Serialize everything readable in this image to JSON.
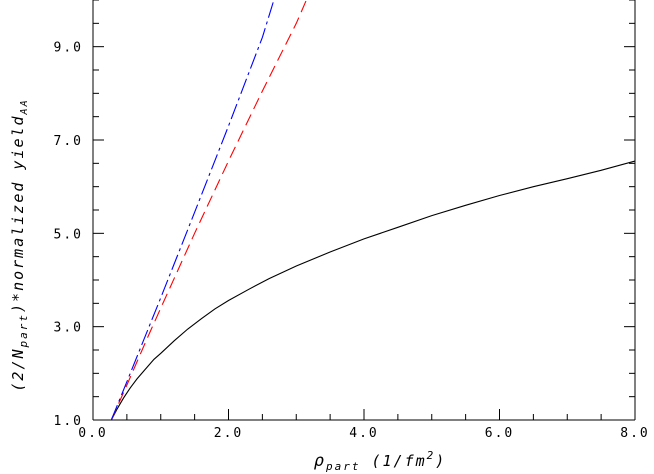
{
  "chart_data": {
    "type": "line",
    "xlabel": {
      "base": "ρ",
      "sub": "part",
      "rest": " (1/fm",
      "sup": "2",
      "end": ")"
    },
    "ylabel": {
      "pre": "(2/N",
      "sub1": "part",
      "mid": ")*normalized yield",
      "sub2": "AA"
    },
    "xlim": [
      0.0,
      8.0
    ],
    "ylim": [
      1.0,
      10.0
    ],
    "x_ticks": [
      "0.0",
      "2.0",
      "4.0",
      "6.0",
      "8.0"
    ],
    "x_tick_values": [
      0,
      2,
      4,
      6,
      8
    ],
    "y_ticks": [
      "1.0",
      "3.0",
      "5.0",
      "7.0",
      "9.0"
    ],
    "y_tick_values": [
      1,
      3,
      5,
      7,
      9
    ],
    "x_minor_step": 0.5,
    "y_minor_step": 0.5,
    "grid": false,
    "series": [
      {
        "style": "solid",
        "color": "#000000",
        "x": [
          0.27,
          0.35,
          0.45,
          0.55,
          0.65,
          0.75,
          0.9,
          1.0,
          1.2,
          1.4,
          1.6,
          1.8,
          2.0,
          2.3,
          2.6,
          3.0,
          3.5,
          4.0,
          4.5,
          5.0,
          5.5,
          6.0,
          6.5,
          7.0,
          7.5,
          8.0
        ],
        "y": [
          1.0,
          1.22,
          1.47,
          1.69,
          1.88,
          2.05,
          2.3,
          2.43,
          2.7,
          2.95,
          3.17,
          3.38,
          3.56,
          3.8,
          4.03,
          4.3,
          4.6,
          4.88,
          5.13,
          5.38,
          5.6,
          5.81,
          6.0,
          6.17,
          6.35,
          6.55
        ]
      },
      {
        "style": "dashed",
        "color": "#ff0000",
        "x": [
          0.27,
          0.5,
          0.8,
          1.0,
          1.5,
          2.0,
          2.5,
          3.0,
          3.15
        ],
        "y": [
          1.0,
          1.75,
          2.75,
          3.4,
          5.0,
          6.55,
          8.05,
          9.5,
          10.0
        ]
      },
      {
        "style": "dashdot",
        "color": "#0000ff",
        "x": [
          0.27,
          0.5,
          0.8,
          1.0,
          1.5,
          2.0,
          2.5,
          2.67
        ],
        "y": [
          1.0,
          1.82,
          2.9,
          3.62,
          5.45,
          7.3,
          9.2,
          10.0
        ]
      }
    ]
  }
}
